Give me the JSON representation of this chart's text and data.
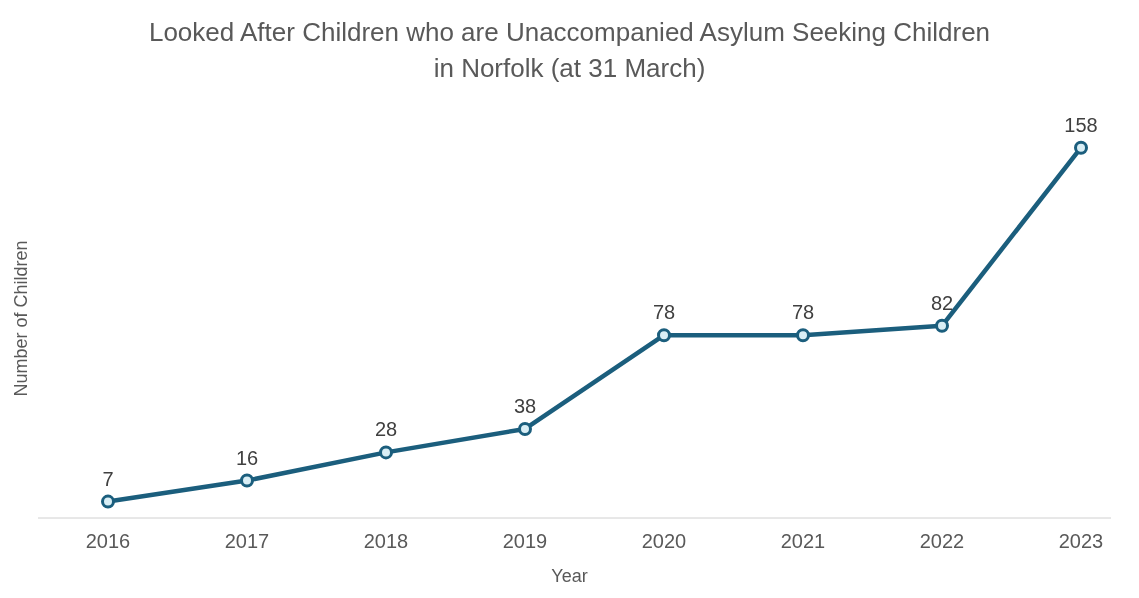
{
  "chart_data": {
    "type": "line",
    "title": "Looked After Children who are Unaccompanied Asylum Seeking Children\nin Norfolk (at 31 March)",
    "xlabel": "Year",
    "ylabel": "Number of Children",
    "categories": [
      "2016",
      "2017",
      "2018",
      "2019",
      "2020",
      "2021",
      "2022",
      "2023"
    ],
    "series": [
      {
        "color": "#1b5e7d",
        "values": [
          7,
          16,
          28,
          38,
          78,
          78,
          82,
          158
        ]
      }
    ],
    "data_labels": true,
    "marker": "circle",
    "grid": false,
    "legend": false
  }
}
